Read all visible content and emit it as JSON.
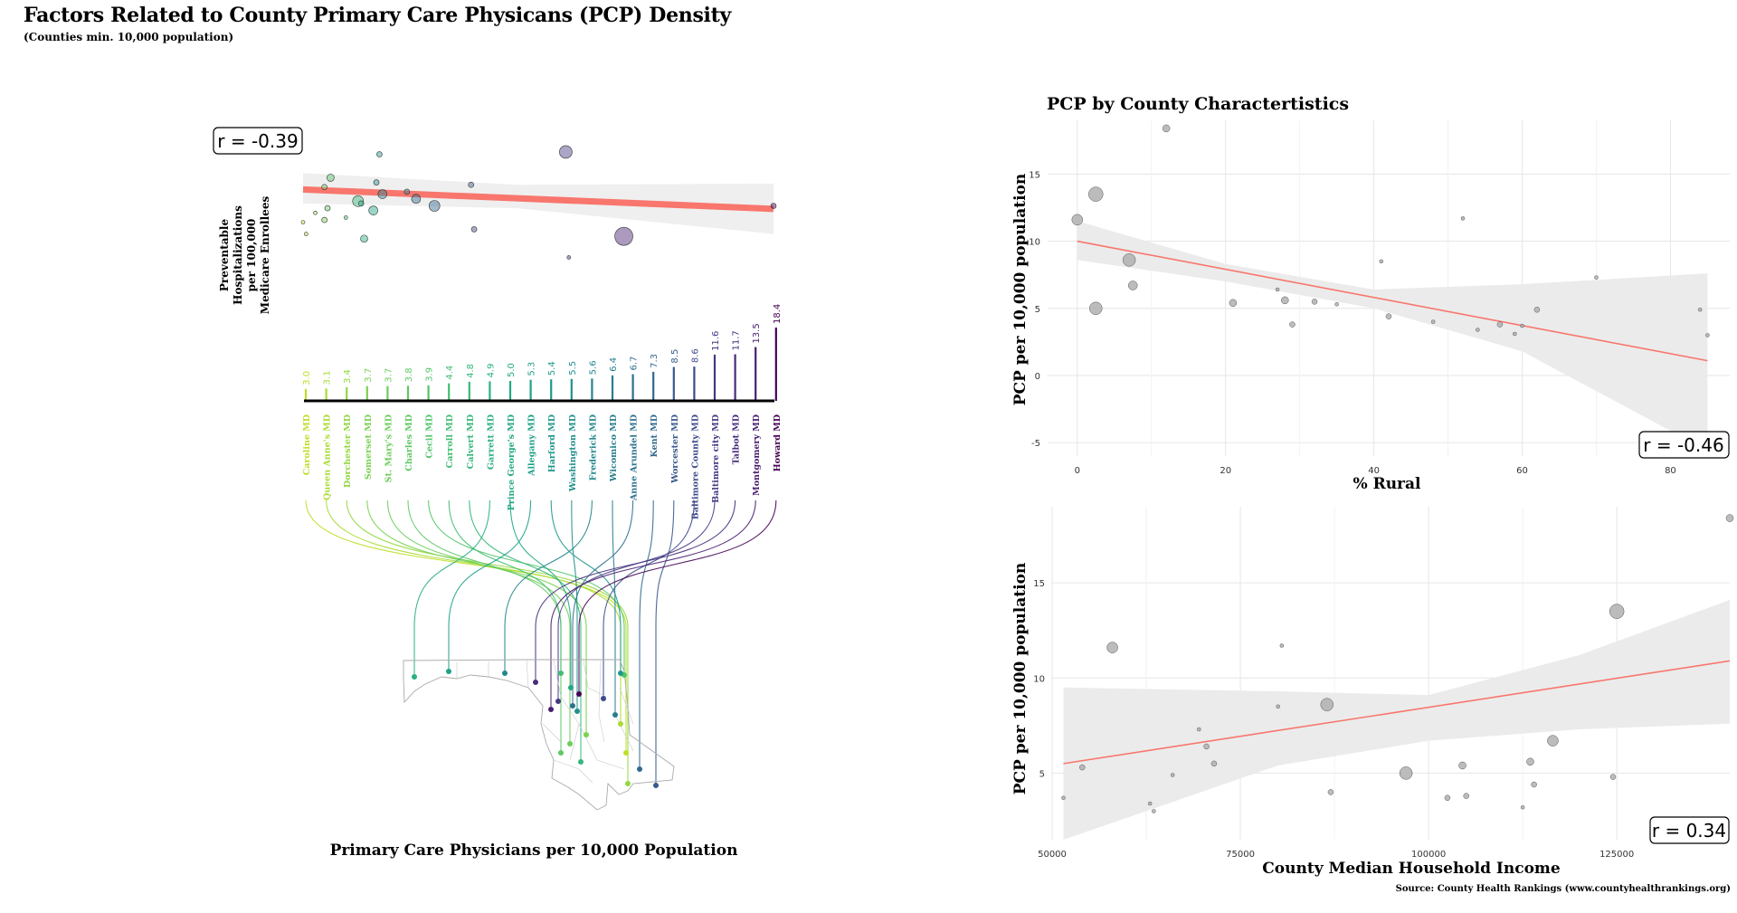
{
  "title": "Factors Related to County Primary Care Physicans (PCP) Density",
  "subtitle": "(Counties min. 10,000 population)",
  "source": "Source: County Health Rankings (www.countyhealthrankings.org)",
  "colors": {
    "fit": "#f8766d",
    "band": "#ebebeb",
    "point": "#b0b0b0",
    "grid": "#e6e6e6"
  },
  "chart_data": [
    {
      "type": "scatter",
      "name": "hospitalizations",
      "ylabel_lines": [
        "Preventable",
        "Hospitalizations",
        "per 100,000",
        "Medicare Enrollees"
      ],
      "r_label": "r = -0.39",
      "x": [
        3.0,
        3.1,
        3.4,
        3.7,
        3.7,
        3.8,
        3.9,
        4.4,
        4.8,
        4.9,
        5.0,
        5.3,
        5.4,
        5.5,
        5.6,
        6.4,
        6.7,
        7.3,
        8.5,
        8.6,
        11.6,
        11.7,
        13.5,
        18.4
      ],
      "y": [
        4900,
        4400,
        5300,
        5000,
        6400,
        5500,
        6800,
        5100,
        5800,
        5700,
        4200,
        5400,
        6600,
        7800,
        6100,
        6200,
        5900,
        5600,
        6500,
        4600,
        7900,
        3400,
        4300,
        5600
      ],
      "sizes": [
        2,
        2,
        2,
        3,
        3,
        3,
        4,
        2,
        6,
        3,
        4,
        5,
        3,
        3,
        5,
        3,
        5,
        6,
        3,
        3,
        7,
        2,
        10,
        3
      ],
      "fit": [
        [
          3.0,
          6300
        ],
        [
          18.4,
          5470
        ]
      ],
      "colors": [
        "#bddf26",
        "#a8db34",
        "#93d741",
        "#7ad151",
        "#6ccd5a",
        "#5ec962",
        "#52c569",
        "#42be71",
        "#35b779",
        "#2ab07f",
        "#22a884",
        "#1fa187",
        "#1f998a",
        "#21918c",
        "#24868e",
        "#287d8e",
        "#2d718e",
        "#31688e",
        "#38598c",
        "#3e4a89",
        "#443a83",
        "#472d7b",
        "#481d6f",
        "#440154"
      ]
    },
    {
      "type": "bar",
      "name": "pcp_density",
      "xlabel": "Primary Care Physicians per 10,000 Population",
      "categories": [
        "Caroline MD",
        "Queen Anne's MD",
        "Dorchester MD",
        "Somerset MD",
        "St. Mary's MD",
        "Charles MD",
        "Cecil MD",
        "Carroll MD",
        "Calvert MD",
        "Garrett MD",
        "Prince George's MD",
        "Allegany MD",
        "Harford MD",
        "Washington MD",
        "Frederick MD",
        "Wicomico MD",
        "Anne Arundel MD",
        "Kent MD",
        "Worcester MD",
        "Baltimore County MD",
        "Baltimore city MD",
        "Talbot MD",
        "Montgomery MD",
        "Howard MD"
      ],
      "values": [
        3.0,
        3.1,
        3.4,
        3.7,
        3.7,
        3.8,
        3.9,
        4.4,
        4.8,
        4.9,
        5.0,
        5.3,
        5.4,
        5.5,
        5.6,
        6.4,
        6.7,
        7.3,
        8.5,
        8.6,
        11.6,
        11.7,
        13.5,
        18.4
      ],
      "value_labels": [
        "3.0",
        "3.1",
        "3.4",
        "3.7",
        "3.7",
        "3.8",
        "3.9",
        "4.4",
        "4.8",
        "4.9",
        "5.0",
        "5.3",
        "5.4",
        "5.5",
        "5.6",
        "6.4",
        "6.7",
        "7.3",
        "8.5",
        "8.6",
        "11.6",
        "11.7",
        "13.5",
        "18.4"
      ]
    },
    {
      "type": "scatter",
      "name": "rural",
      "title": "PCP by County Charactertistics",
      "xlabel": "% Rural",
      "ylabel": "PCP per 10,000 population",
      "r_label": "r = -0.46",
      "xlim": [
        -4,
        88
      ],
      "ylim": [
        -6,
        19
      ],
      "xticks": [
        0,
        20,
        40,
        60,
        80
      ],
      "yticks": [
        -5,
        0,
        5,
        10,
        15
      ],
      "x": [
        0,
        2.5,
        2.5,
        7,
        7.5,
        12,
        21,
        27,
        28,
        29,
        32,
        35,
        41,
        42,
        48,
        52,
        54,
        57,
        59,
        60,
        62,
        70,
        84,
        85
      ],
      "y": [
        11.6,
        13.5,
        5.0,
        8.6,
        6.7,
        18.4,
        5.4,
        6.4,
        5.6,
        3.8,
        5.5,
        5.3,
        8.5,
        4.4,
        4.0,
        11.7,
        3.4,
        3.8,
        3.1,
        3.7,
        4.9,
        7.3,
        4.9,
        3.0
      ],
      "sizes": [
        6,
        8,
        7,
        7,
        5,
        4,
        4,
        2,
        4,
        3,
        3,
        2,
        2,
        3,
        2,
        2,
        2,
        3,
        2,
        2,
        3,
        2,
        2,
        2
      ],
      "fit": [
        [
          0,
          10.0
        ],
        [
          85,
          1.1
        ]
      ],
      "band_upper": [
        [
          0,
          11.5
        ],
        [
          20,
          8.3
        ],
        [
          40,
          6.4
        ],
        [
          60,
          6.8
        ],
        [
          85,
          7.6
        ]
      ],
      "band_lower": [
        [
          0,
          8.6
        ],
        [
          20,
          7.0
        ],
        [
          40,
          5.0
        ],
        [
          60,
          1.8
        ],
        [
          85,
          -5.6
        ]
      ]
    },
    {
      "type": "scatter",
      "name": "income",
      "xlabel": "County Median Household Income",
      "ylabel": "PCP per 10,000 population",
      "r_label": "r = 0.34",
      "xlim": [
        50000,
        140000
      ],
      "ylim": [
        1.5,
        19
      ],
      "xticks": [
        50000,
        75000,
        100000,
        125000
      ],
      "xtick_labels": [
        "50000",
        "75000",
        "100000",
        "125000"
      ],
      "yticks": [
        5,
        10,
        15
      ],
      "x": [
        51500,
        54000,
        58000,
        63000,
        63500,
        66000,
        69500,
        70500,
        71500,
        80000,
        80500,
        86500,
        87000,
        97000,
        102500,
        104500,
        105000,
        112500,
        113500,
        114000,
        116500,
        124500,
        125000,
        140000
      ],
      "y": [
        3.7,
        5.3,
        11.6,
        3.4,
        3.0,
        4.9,
        7.3,
        6.4,
        5.5,
        8.5,
        11.7,
        8.6,
        4.0,
        5.0,
        3.7,
        5.4,
        3.8,
        3.2,
        5.6,
        4.4,
        6.7,
        4.8,
        13.5,
        18.4
      ],
      "sizes": [
        2,
        3,
        6,
        2,
        2,
        2,
        2,
        3,
        3,
        2,
        2,
        7,
        3,
        7,
        3,
        4,
        3,
        2,
        4,
        3,
        6,
        3,
        8,
        4
      ],
      "fit": [
        [
          51500,
          5.5
        ],
        [
          140000,
          10.9
        ]
      ],
      "band_upper": [
        [
          51500,
          9.5
        ],
        [
          80000,
          9.3
        ],
        [
          100000,
          9.1
        ],
        [
          120000,
          11.2
        ],
        [
          140000,
          14.1
        ]
      ],
      "band_lower": [
        [
          51500,
          1.5
        ],
        [
          80000,
          5.4
        ],
        [
          100000,
          6.7
        ],
        [
          120000,
          7.3
        ],
        [
          140000,
          7.6
        ]
      ]
    }
  ]
}
